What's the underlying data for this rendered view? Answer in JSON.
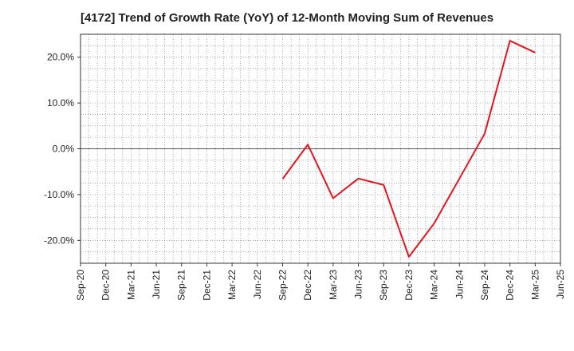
{
  "chart_data": {
    "type": "line",
    "title": "[4172]  Trend of Growth Rate (YoY) of 12-Month Moving Sum of Revenues",
    "xlabel": "",
    "ylabel": "",
    "categories": [
      "Sep-20",
      "Dec-20",
      "Mar-21",
      "Jun-21",
      "Sep-21",
      "Dec-21",
      "Mar-22",
      "Jun-22",
      "Sep-22",
      "Dec-22",
      "Mar-23",
      "Jun-23",
      "Sep-23",
      "Dec-23",
      "Mar-24",
      "Jun-24",
      "Sep-24",
      "Dec-24",
      "Mar-25",
      "Jun-25"
    ],
    "ylim": [
      -25,
      25
    ],
    "yticks": [
      -20,
      -10,
      0,
      10,
      20
    ],
    "ytick_labels": [
      "-20.0%",
      "-10.0%",
      "0.0%",
      "10.0%",
      "20.0%"
    ],
    "grid": true,
    "series": [
      {
        "color": "#e8141c",
        "values": [
          null,
          null,
          null,
          null,
          null,
          null,
          null,
          null,
          -6.6,
          0.9,
          -10.8,
          -6.5,
          -7.9,
          -23.6,
          -16.3,
          -6.5,
          3.3,
          23.6,
          21.0,
          null
        ]
      }
    ]
  }
}
